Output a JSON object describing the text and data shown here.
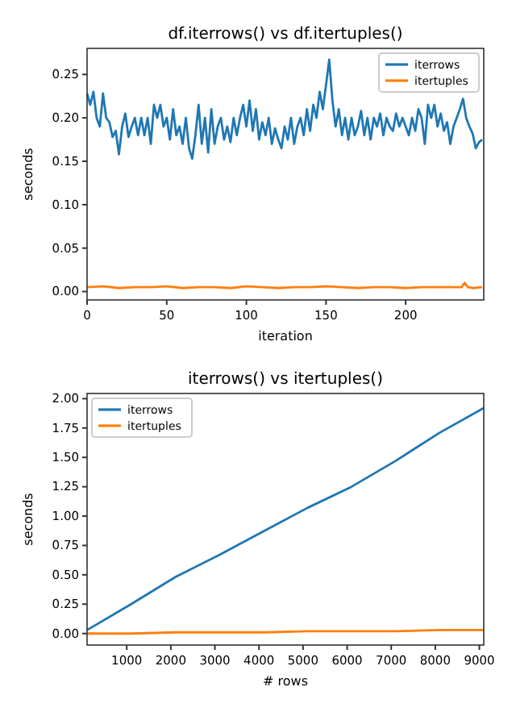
{
  "chart_data": [
    {
      "type": "line",
      "title": "df.iterrows() vs df.itertuples()",
      "xlabel": "iteration",
      "ylabel": "seconds",
      "xlim": [
        0,
        249
      ],
      "ylim": [
        -0.0097,
        0.28
      ],
      "xticks": [
        0,
        50,
        100,
        150,
        200
      ],
      "yticks": [
        {
          "value": 0,
          "label": "0.00"
        },
        {
          "value": 0.05,
          "label": "0.05"
        },
        {
          "value": 0.1,
          "label": "0.10"
        },
        {
          "value": 0.15,
          "label": "0.15"
        },
        {
          "value": 0.2,
          "label": "0.20"
        },
        {
          "value": 0.25,
          "label": "0.25"
        }
      ],
      "legend": "top right",
      "grid": false,
      "series": [
        {
          "name": "iterrows",
          "color": "#1f77b4",
          "x": [
            0,
            2,
            4,
            6,
            8,
            10,
            12,
            14,
            16,
            18,
            20,
            22,
            24,
            26,
            28,
            30,
            32,
            34,
            36,
            38,
            40,
            42,
            44,
            46,
            48,
            50,
            52,
            54,
            56,
            58,
            60,
            62,
            64,
            66,
            68,
            70,
            72,
            74,
            76,
            78,
            80,
            82,
            84,
            86,
            88,
            90,
            92,
            94,
            96,
            98,
            100,
            102,
            104,
            106,
            108,
            110,
            112,
            114,
            116,
            118,
            120,
            122,
            124,
            126,
            128,
            130,
            132,
            134,
            136,
            138,
            140,
            142,
            144,
            146,
            148,
            150,
            152,
            154,
            156,
            158,
            160,
            162,
            164,
            166,
            168,
            170,
            172,
            174,
            176,
            178,
            180,
            182,
            184,
            186,
            188,
            190,
            192,
            194,
            196,
            198,
            200,
            202,
            204,
            206,
            208,
            210,
            212,
            214,
            216,
            218,
            220,
            222,
            224,
            226,
            228,
            230,
            232,
            234,
            236,
            238,
            240,
            242,
            244,
            246,
            248
          ],
          "values": [
            0.228,
            0.215,
            0.23,
            0.2,
            0.19,
            0.228,
            0.2,
            0.195,
            0.178,
            0.185,
            0.158,
            0.19,
            0.205,
            0.178,
            0.19,
            0.2,
            0.18,
            0.2,
            0.18,
            0.2,
            0.17,
            0.215,
            0.2,
            0.215,
            0.19,
            0.2,
            0.175,
            0.21,
            0.18,
            0.19,
            0.17,
            0.2,
            0.165,
            0.153,
            0.18,
            0.215,
            0.17,
            0.2,
            0.16,
            0.21,
            0.17,
            0.19,
            0.2,
            0.175,
            0.19,
            0.172,
            0.2,
            0.18,
            0.2,
            0.215,
            0.19,
            0.22,
            0.185,
            0.21,
            0.175,
            0.195,
            0.18,
            0.2,
            0.17,
            0.188,
            0.175,
            0.165,
            0.19,
            0.175,
            0.2,
            0.17,
            0.19,
            0.2,
            0.18,
            0.21,
            0.185,
            0.215,
            0.2,
            0.23,
            0.21,
            0.238,
            0.267,
            0.22,
            0.19,
            0.21,
            0.18,
            0.2,
            0.175,
            0.2,
            0.18,
            0.19,
            0.208,
            0.18,
            0.2,
            0.175,
            0.2,
            0.19,
            0.205,
            0.18,
            0.2,
            0.19,
            0.185,
            0.205,
            0.19,
            0.2,
            0.19,
            0.18,
            0.2,
            0.185,
            0.21,
            0.2,
            0.17,
            0.215,
            0.2,
            0.215,
            0.19,
            0.205,
            0.185,
            0.195,
            0.17,
            0.19,
            0.2,
            0.21,
            0.222,
            0.2,
            0.19,
            0.182,
            0.165,
            0.172,
            0.175
          ]
        },
        {
          "name": "itertuples",
          "color": "#ff7f0e",
          "x": [
            0,
            10,
            20,
            30,
            40,
            50,
            60,
            70,
            80,
            90,
            100,
            110,
            120,
            130,
            140,
            150,
            160,
            170,
            180,
            190,
            200,
            210,
            220,
            230,
            235,
            237,
            239,
            242,
            248
          ],
          "values": [
            0.005,
            0.006,
            0.004,
            0.005,
            0.005,
            0.006,
            0.004,
            0.005,
            0.005,
            0.004,
            0.006,
            0.005,
            0.004,
            0.005,
            0.005,
            0.006,
            0.005,
            0.004,
            0.005,
            0.005,
            0.004,
            0.005,
            0.005,
            0.005,
            0.005,
            0.01,
            0.005,
            0.004,
            0.005
          ]
        }
      ]
    },
    {
      "type": "line",
      "title": "iterrows() vs itertuples()",
      "xlabel": "# rows",
      "ylabel": "seconds",
      "xlim": [
        100,
        9100
      ],
      "ylim": [
        -0.098,
        2.044
      ],
      "xticks": [
        1000,
        2000,
        3000,
        4000,
        5000,
        6000,
        7000,
        8000,
        9000
      ],
      "yticks": [
        {
          "value": 0,
          "label": "0.00"
        },
        {
          "value": 0.25,
          "label": "0.25"
        },
        {
          "value": 0.5,
          "label": "0.50"
        },
        {
          "value": 0.75,
          "label": "0.75"
        },
        {
          "value": 1,
          "label": "1.00"
        },
        {
          "value": 1.25,
          "label": "1.25"
        },
        {
          "value": 1.5,
          "label": "1.50"
        },
        {
          "value": 1.75,
          "label": "1.75"
        },
        {
          "value": 2,
          "label": "2.00"
        }
      ],
      "legend": "top left",
      "grid": false,
      "series": [
        {
          "name": "iterrows",
          "color": "#1f77b4",
          "x": [
            100,
            1100,
            2100,
            3100,
            4100,
            5100,
            6100,
            7100,
            8100,
            9100
          ],
          "values": [
            0.03,
            0.25,
            0.48,
            0.67,
            0.87,
            1.07,
            1.25,
            1.47,
            1.71,
            1.92
          ]
        },
        {
          "name": "itertuples",
          "color": "#ff7f0e",
          "x": [
            100,
            1100,
            2100,
            3100,
            4100,
            5100,
            6100,
            7100,
            8100,
            9100
          ],
          "values": [
            0,
            0,
            0.01,
            0.01,
            0.01,
            0.02,
            0.02,
            0.02,
            0.03,
            0.03
          ]
        }
      ]
    }
  ]
}
